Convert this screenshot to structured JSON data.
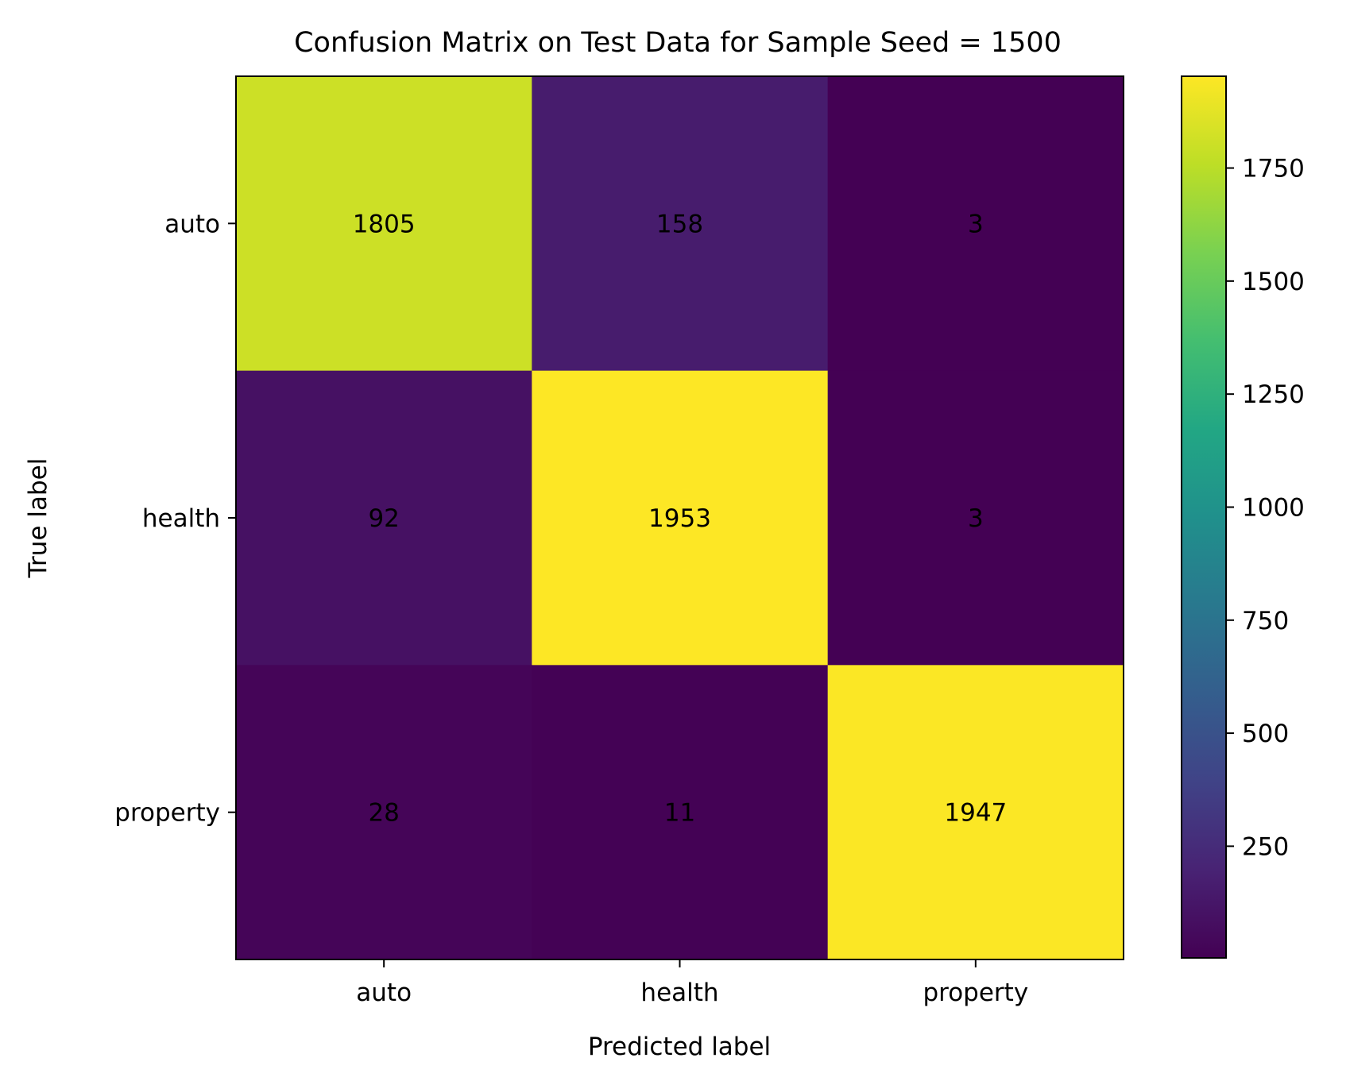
{
  "chart_data": {
    "type": "heatmap",
    "title": "Confusion Matrix on Test Data for Sample Seed = 1500",
    "xlabel": "Predicted label",
    "ylabel": "True label",
    "x_categories": [
      "auto",
      "health",
      "property"
    ],
    "y_categories": [
      "auto",
      "health",
      "property"
    ],
    "values": [
      [
        1805,
        158,
        3
      ],
      [
        92,
        1953,
        3
      ],
      [
        28,
        11,
        1947
      ]
    ],
    "colormap": "viridis",
    "colorbar": {
      "range": [
        3,
        1953
      ],
      "ticks": [
        250,
        500,
        750,
        1000,
        1250,
        1500,
        1750
      ]
    },
    "grid": false,
    "text_colors": {
      "dark": "#440154",
      "light": "#fde725"
    }
  }
}
